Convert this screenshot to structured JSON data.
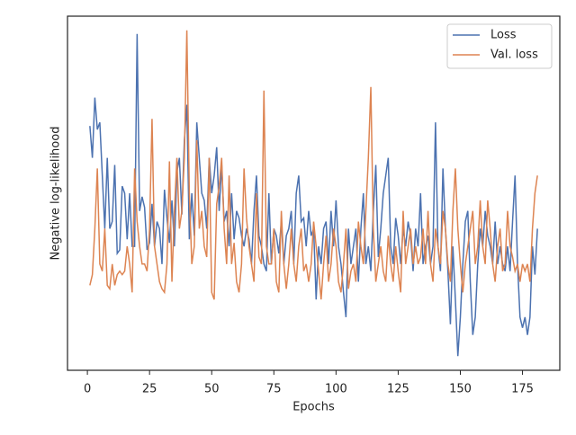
{
  "chart_data": {
    "type": "line",
    "x_label": "Epochs",
    "y_label": "Negative log-likelihood",
    "x": [
      1,
      2,
      3,
      4,
      5,
      6,
      7,
      8,
      9,
      10,
      11,
      12,
      13,
      14,
      15,
      16,
      17,
      18,
      19,
      20,
      21,
      22,
      23,
      24,
      25,
      26,
      27,
      28,
      29,
      30,
      31,
      32,
      33,
      34,
      35,
      36,
      37,
      38,
      39,
      40,
      41,
      42,
      43,
      44,
      45,
      46,
      47,
      48,
      49,
      50,
      51,
      52,
      53,
      54,
      55,
      56,
      57,
      58,
      59,
      60,
      61,
      62,
      63,
      64,
      65,
      66,
      67,
      68,
      69,
      70,
      71,
      72,
      73,
      74,
      75,
      76,
      77,
      78,
      79,
      80,
      81,
      82,
      83,
      84,
      85,
      86,
      87,
      88,
      89,
      90,
      91,
      92,
      93,
      94,
      95,
      96,
      97,
      98,
      99,
      100,
      101,
      102,
      103,
      104,
      105,
      106,
      107,
      108,
      109,
      110,
      111,
      112,
      113,
      114,
      115,
      116,
      117,
      118,
      119,
      120,
      121,
      122,
      123,
      124,
      125,
      126,
      127,
      128,
      129,
      130,
      131,
      132,
      133,
      134,
      135,
      136,
      137,
      138,
      139,
      140,
      141,
      142,
      143,
      144,
      145,
      146,
      147,
      148,
      149,
      150,
      151,
      152,
      153,
      154,
      155,
      156,
      157,
      158,
      159,
      160,
      161,
      162,
      163,
      164,
      165,
      166,
      167,
      168,
      169,
      170,
      171,
      172,
      173,
      174,
      175,
      176,
      177,
      178,
      179,
      180,
      181
    ],
    "series": [
      {
        "name": "Loss",
        "color": "#4c72b0",
        "values": [
          0.69,
          0.6,
          0.77,
          0.68,
          0.7,
          0.55,
          0.4,
          0.6,
          0.4,
          0.42,
          0.58,
          0.33,
          0.34,
          0.52,
          0.5,
          0.37,
          0.5,
          0.35,
          0.35,
          0.95,
          0.45,
          0.49,
          0.46,
          0.34,
          0.36,
          0.47,
          0.35,
          0.42,
          0.4,
          0.3,
          0.51,
          0.43,
          0.36,
          0.48,
          0.35,
          0.56,
          0.6,
          0.44,
          0.65,
          0.75,
          0.37,
          0.5,
          0.38,
          0.7,
          0.6,
          0.5,
          0.48,
          0.4,
          0.6,
          0.5,
          0.55,
          0.63,
          0.45,
          0.58,
          0.42,
          0.45,
          0.35,
          0.5,
          0.37,
          0.45,
          0.43,
          0.38,
          0.35,
          0.4,
          0.37,
          0.3,
          0.45,
          0.55,
          0.38,
          0.35,
          0.3,
          0.28,
          0.5,
          0.3,
          0.4,
          0.38,
          0.33,
          0.42,
          0.3,
          0.38,
          0.4,
          0.45,
          0.3,
          0.5,
          0.55,
          0.42,
          0.43,
          0.35,
          0.45,
          0.38,
          0.4,
          0.2,
          0.35,
          0.3,
          0.4,
          0.42,
          0.3,
          0.45,
          0.35,
          0.48,
          0.35,
          0.3,
          0.22,
          0.15,
          0.4,
          0.3,
          0.35,
          0.4,
          0.25,
          0.4,
          0.5,
          0.3,
          0.35,
          0.28,
          0.45,
          0.58,
          0.32,
          0.4,
          0.5,
          0.55,
          0.6,
          0.35,
          0.3,
          0.43,
          0.38,
          0.3,
          0.4,
          0.35,
          0.42,
          0.38,
          0.28,
          0.4,
          0.35,
          0.5,
          0.3,
          0.35,
          0.38,
          0.3,
          0.35,
          0.7,
          0.35,
          0.28,
          0.57,
          0.4,
          0.28,
          0.13,
          0.35,
          0.2,
          0.04,
          0.15,
          0.3,
          0.42,
          0.45,
          0.25,
          0.1,
          0.15,
          0.3,
          0.4,
          0.35,
          0.45,
          0.38,
          0.35,
          0.3,
          0.42,
          0.3,
          0.35,
          0.3,
          0.28,
          0.35,
          0.28,
          0.42,
          0.55,
          0.3,
          0.15,
          0.12,
          0.15,
          0.1,
          0.15,
          0.35,
          0.27,
          0.4
        ]
      },
      {
        "name": "Val. loss",
        "color": "#dd8452",
        "values": [
          0.24,
          0.27,
          0.4,
          0.57,
          0.3,
          0.28,
          0.4,
          0.24,
          0.23,
          0.3,
          0.24,
          0.27,
          0.28,
          0.27,
          0.28,
          0.35,
          0.3,
          0.22,
          0.57,
          0.42,
          0.35,
          0.3,
          0.3,
          0.28,
          0.4,
          0.71,
          0.35,
          0.3,
          0.25,
          0.23,
          0.22,
          0.3,
          0.59,
          0.25,
          0.45,
          0.6,
          0.4,
          0.45,
          0.6,
          0.96,
          0.5,
          0.3,
          0.35,
          0.65,
          0.4,
          0.45,
          0.35,
          0.32,
          0.6,
          0.22,
          0.2,
          0.47,
          0.52,
          0.6,
          0.4,
          0.3,
          0.55,
          0.3,
          0.36,
          0.25,
          0.22,
          0.3,
          0.57,
          0.43,
          0.35,
          0.3,
          0.25,
          0.5,
          0.32,
          0.3,
          0.79,
          0.35,
          0.3,
          0.3,
          0.4,
          0.25,
          0.22,
          0.45,
          0.3,
          0.23,
          0.3,
          0.4,
          0.3,
          0.25,
          0.35,
          0.4,
          0.28,
          0.3,
          0.25,
          0.3,
          0.42,
          0.35,
          0.28,
          0.2,
          0.3,
          0.38,
          0.25,
          0.3,
          0.4,
          0.35,
          0.25,
          0.22,
          0.3,
          0.4,
          0.23,
          0.28,
          0.3,
          0.25,
          0.42,
          0.35,
          0.3,
          0.45,
          0.6,
          0.8,
          0.4,
          0.25,
          0.3,
          0.35,
          0.28,
          0.25,
          0.38,
          0.3,
          0.25,
          0.35,
          0.28,
          0.22,
          0.45,
          0.3,
          0.35,
          0.4,
          0.3,
          0.35,
          0.3,
          0.32,
          0.4,
          0.3,
          0.45,
          0.3,
          0.25,
          0.4,
          0.35,
          0.3,
          0.45,
          0.4,
          0.3,
          0.25,
          0.45,
          0.57,
          0.4,
          0.3,
          0.22,
          0.3,
          0.35,
          0.4,
          0.45,
          0.3,
          0.35,
          0.48,
          0.35,
          0.3,
          0.48,
          0.4,
          0.3,
          0.25,
          0.35,
          0.4,
          0.28,
          0.3,
          0.45,
          0.35,
          0.32,
          0.28,
          0.3,
          0.25,
          0.3,
          0.28,
          0.3,
          0.25,
          0.4,
          0.5,
          0.55
        ]
      }
    ],
    "xlim": [
      -8,
      190
    ],
    "xticks": [
      0,
      25,
      50,
      75,
      100,
      125,
      150,
      175
    ],
    "ylim": [
      0,
      1
    ],
    "legend": "upper right"
  }
}
